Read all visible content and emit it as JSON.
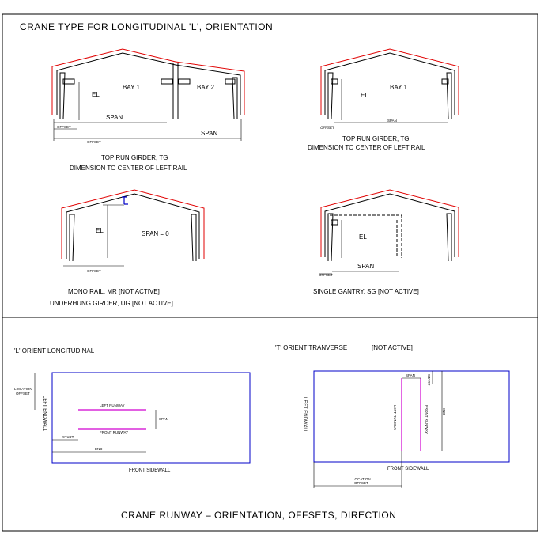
{
  "title": "CRANE TYPE FOR LONGITUDINAL 'L', ORIENTATION",
  "footer_title": "CRANE RUNWAY  –  ORIENTATION, OFFSETS, DIRECTION",
  "panel_tg2": {
    "bay1": "BAY 1",
    "bay2": "BAY 2",
    "el": "EL",
    "span": "SPAN",
    "span2": "SPAN",
    "offset": "OFFSET",
    "offset_long": "OFFSET",
    "caption1": "TOP RUN GIRDER, TG",
    "caption2": "DIMENSION TO CENTER OF LEFT RAIL"
  },
  "panel_tg1": {
    "bay1": "BAY 1",
    "el": "EL",
    "span": "SPAN",
    "offset": "OFFSET",
    "caption1": "TOP RUN GIRDER, TG",
    "caption2": "DIMENSION TO CENTER OF LEFT RAIL"
  },
  "panel_mr": {
    "el": "EL",
    "span": "SPAN = 0",
    "offset": "OFFSET",
    "caption1": "MONO RAIL, MR [NOT ACTIVE]",
    "caption2": "UNDERHUNG GIRDER, UG [NOT ACTIVE]"
  },
  "panel_sg": {
    "el": "EL",
    "span": "SPAN",
    "offset": "OFFSET",
    "caption1": "SINGLE GANTRY, SG   [NOT ACTIVE]"
  },
  "orient_l": {
    "heading": "'L' ORIENT LONGITUDINAL",
    "location_offset1": "LOCATION",
    "location_offset2": "OFFSET",
    "left_endwall": "LEFT ENDWALL",
    "left_runway": "LEFT RUNWAY",
    "front_runway": "FRONT RUNWAY",
    "span": "SPAN",
    "start": "START",
    "end": "END",
    "front_sidewall": "FRONT SIDEWALL"
  },
  "orient_t": {
    "heading": "'T' ORIENT TRANVERSE",
    "not_active": "[NOT ACTIVE]",
    "span": "SPAN",
    "start": "START",
    "end": "END",
    "left_runway": "LEFT RUNWAY",
    "front_runway": "FRONT RUNWAY",
    "left_endwall": "LEFT ENDWALL",
    "front_sidewall": "FRONT SIDEWALL",
    "location_offset1": "LOCATION",
    "location_offset2": "OFFSET"
  },
  "colors": {
    "outline": "#000000",
    "roof_red": "#e00000",
    "building_blue": "#0000c8",
    "runway_magenta": "#d000d0"
  }
}
